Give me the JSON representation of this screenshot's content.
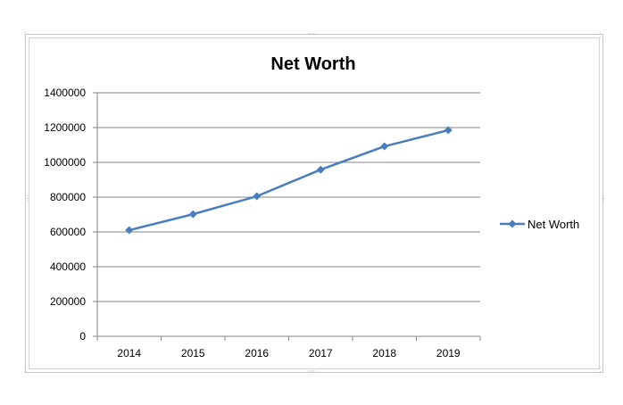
{
  "chart_data": {
    "type": "line",
    "title": "Net Worth",
    "xlabel": "",
    "ylabel": "",
    "categories": [
      "2014",
      "2015",
      "2016",
      "2017",
      "2018",
      "2019"
    ],
    "series": [
      {
        "name": "Net Worth",
        "values": [
          610000,
          702000,
          805000,
          958000,
          1092000,
          1185000
        ],
        "color": "#4a7ebb",
        "marker": "diamond"
      }
    ],
    "ylim": [
      0,
      1400000
    ],
    "yticks": [
      "0",
      "200000",
      "400000",
      "600000",
      "800000",
      "1000000",
      "1200000",
      "1400000"
    ],
    "grid": true,
    "legend_position": "right"
  }
}
